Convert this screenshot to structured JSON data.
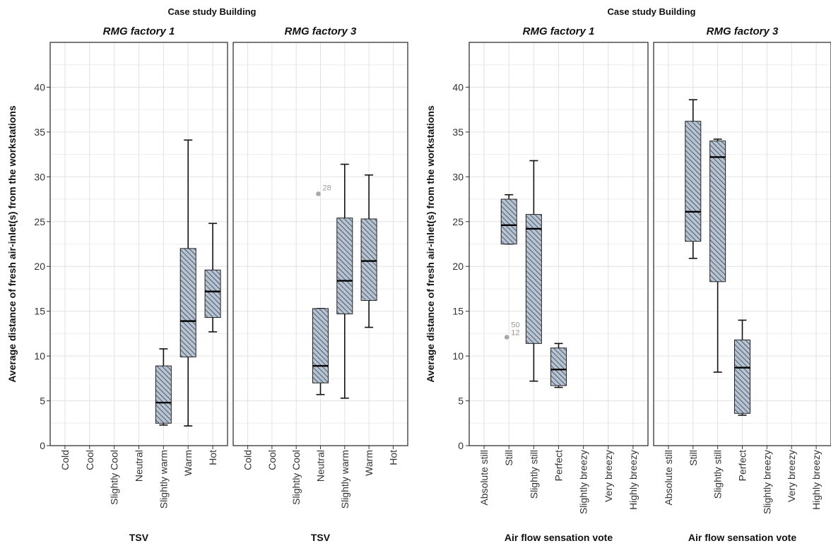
{
  "chart_data": [
    {
      "type": "boxplot",
      "super_title": "Case study Building",
      "ylabel": "Average distance of fresh air-inlet(s) from the workstations",
      "xlabel": "TSV",
      "ylim": [
        0,
        45
      ],
      "yticks": [
        0,
        5,
        10,
        15,
        20,
        25,
        30,
        35,
        40
      ],
      "grid": true,
      "categories": [
        "Cold",
        "Cool",
        "Slightly Cool",
        "Neutral",
        "Slightly warm",
        "Warm",
        "Hot"
      ],
      "colors": {
        "box_fill": "#b7c3d0",
        "hatch": "#2f3f55",
        "outlier": "#a8a8a8"
      },
      "panels": [
        {
          "title": "RMG factory 1",
          "boxes": [
            {
              "category": "Slightly warm",
              "min": 2.3,
              "q1": 2.5,
              "median": 4.8,
              "q3": 8.9,
              "max": 10.8
            },
            {
              "category": "Warm",
              "min": 2.2,
              "q1": 9.9,
              "median": 13.9,
              "q3": 22.0,
              "max": 34.1
            },
            {
              "category": "Hot",
              "min": 12.7,
              "q1": 14.3,
              "median": 17.2,
              "q3": 19.6,
              "max": 24.8
            }
          ],
          "outliers": []
        },
        {
          "title": "RMG factory 3",
          "boxes": [
            {
              "category": "Neutral",
              "min": 5.7,
              "q1": 7.0,
              "median": 8.9,
              "q3": 15.3,
              "max": 15.3
            },
            {
              "category": "Slightly warm",
              "min": 5.3,
              "q1": 14.7,
              "median": 18.4,
              "q3": 25.4,
              "max": 31.4
            },
            {
              "category": "Warm",
              "min": 13.2,
              "q1": 16.2,
              "median": 20.6,
              "q3": 25.3,
              "max": 30.2
            }
          ],
          "outliers": [
            {
              "category": "Neutral",
              "value": 28.1,
              "label": "28"
            }
          ]
        }
      ]
    },
    {
      "type": "boxplot",
      "super_title": "Case study Building",
      "ylabel": "Average distance of fresh air-inlet(s) from the workstations",
      "xlabel": "Air flow sensation vote",
      "ylim": [
        0,
        45
      ],
      "yticks": [
        0,
        5,
        10,
        15,
        20,
        25,
        30,
        35,
        40
      ],
      "grid": true,
      "categories": [
        "Absolute still",
        "Still",
        "Slightly still",
        "Perfect",
        "Slightly breezy",
        "Very breezy",
        "Highly breezy"
      ],
      "colors": {
        "box_fill": "#b7c3d0",
        "hatch": "#2f3f55",
        "outlier": "#a8a8a8"
      },
      "panels": [
        {
          "title": "RMG factory 1",
          "boxes": [
            {
              "category": "Still",
              "min": 22.5,
              "q1": 22.5,
              "median": 24.6,
              "q3": 27.5,
              "max": 28.0
            },
            {
              "category": "Slightly still",
              "min": 7.2,
              "q1": 11.4,
              "median": 24.2,
              "q3": 25.8,
              "max": 31.8
            },
            {
              "category": "Perfect",
              "min": 6.5,
              "q1": 6.7,
              "median": 8.5,
              "q3": 10.9,
              "max": 11.4
            }
          ],
          "outliers": [
            {
              "category": "Still",
              "value": 12.1,
              "label": "50\n12"
            }
          ]
        },
        {
          "title": "RMG factory 3",
          "boxes": [
            {
              "category": "Still",
              "min": 20.9,
              "q1": 22.8,
              "median": 26.1,
              "q3": 36.2,
              "max": 38.6
            },
            {
              "category": "Slightly still",
              "min": 8.2,
              "q1": 18.3,
              "median": 32.2,
              "q3": 34.0,
              "max": 34.2
            },
            {
              "category": "Perfect",
              "min": 3.4,
              "q1": 3.6,
              "median": 8.7,
              "q3": 11.8,
              "max": 14.0
            }
          ],
          "outliers": []
        }
      ]
    }
  ]
}
